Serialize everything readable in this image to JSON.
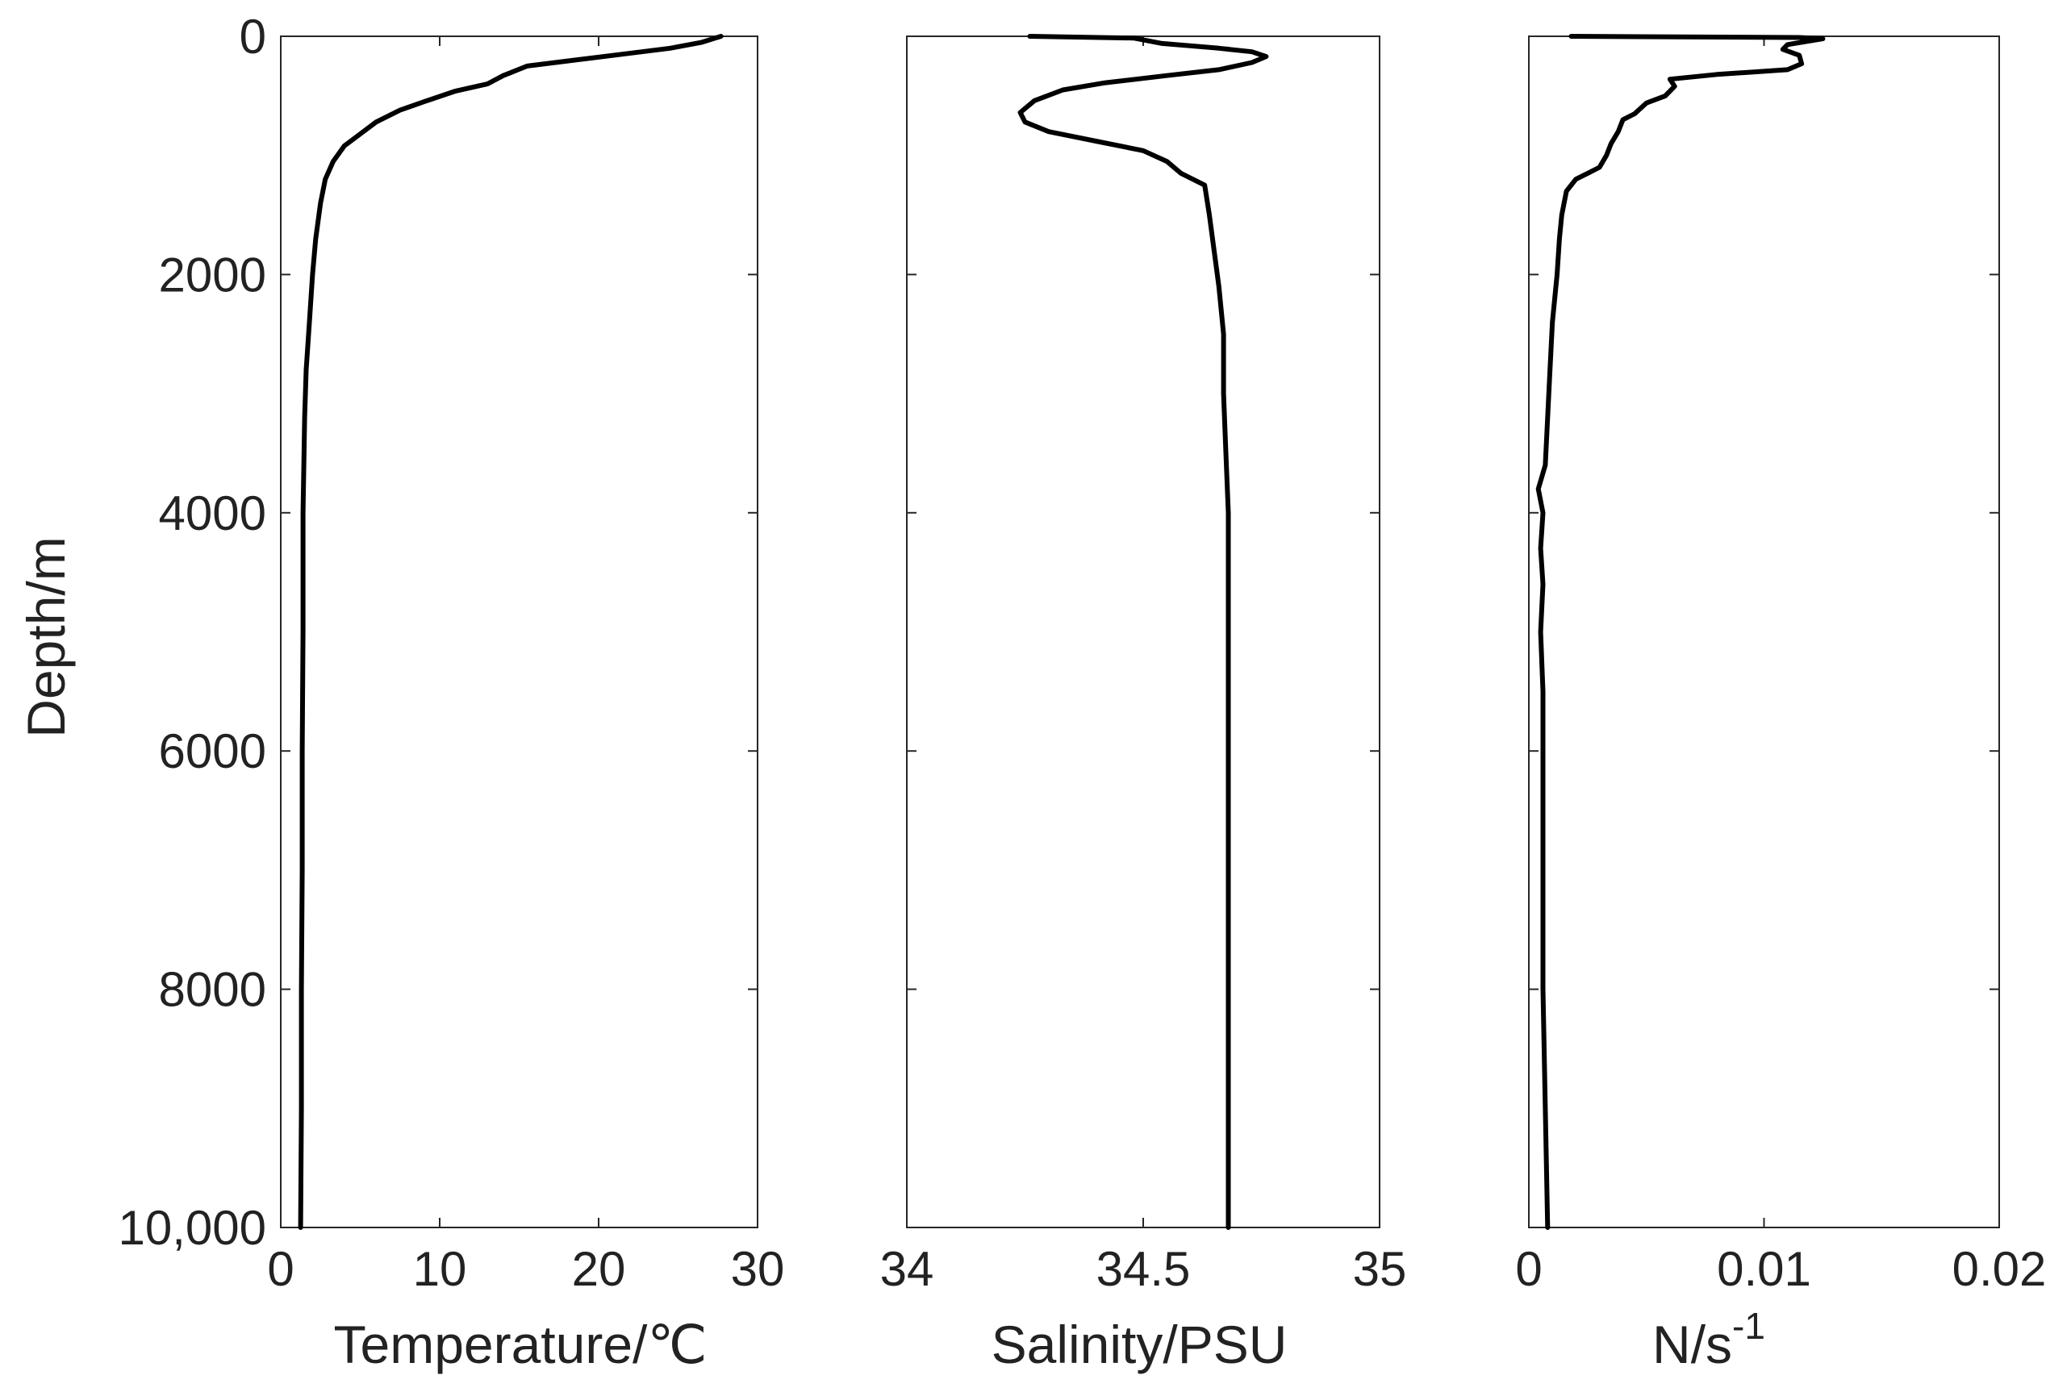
{
  "chart_data": [
    {
      "type": "line",
      "xlabel": "Temperature/℃",
      "ylabel": "Depth/m",
      "xlim": [
        0,
        30
      ],
      "ylim": [
        0,
        10000
      ],
      "y_reversed": true,
      "x_ticks": [
        "0",
        "10",
        "20",
        "30"
      ],
      "y_ticks": [
        "0",
        "2000",
        "4000",
        "6000",
        "8000",
        "10,000"
      ],
      "series": [
        {
          "color": "#000000",
          "points": [
            [
              27.7,
              0
            ],
            [
              26.5,
              50
            ],
            [
              24.5,
              100
            ],
            [
              21.5,
              150
            ],
            [
              18.5,
              200
            ],
            [
              15.5,
              250
            ],
            [
              14,
              330
            ],
            [
              13,
              400
            ],
            [
              11,
              460
            ],
            [
              9,
              550
            ],
            [
              7.5,
              620
            ],
            [
              6,
              720
            ],
            [
              5,
              820
            ],
            [
              4,
              920
            ],
            [
              3.3,
              1050
            ],
            [
              2.8,
              1200
            ],
            [
              2.5,
              1400
            ],
            [
              2.2,
              1700
            ],
            [
              2.0,
              2000
            ],
            [
              1.8,
              2400
            ],
            [
              1.6,
              2800
            ],
            [
              1.5,
              3200
            ],
            [
              1.45,
              3600
            ],
            [
              1.4,
              4000
            ],
            [
              1.4,
              5000
            ],
            [
              1.35,
              6000
            ],
            [
              1.35,
              7000
            ],
            [
              1.3,
              8000
            ],
            [
              1.3,
              9000
            ],
            [
              1.25,
              10000
            ]
          ]
        }
      ]
    },
    {
      "type": "line",
      "xlabel": "Salinity/PSU",
      "xlim": [
        34,
        35
      ],
      "ylim": [
        0,
        10000
      ],
      "y_reversed": true,
      "x_ticks": [
        "34",
        "34.5",
        "35"
      ],
      "series": [
        {
          "color": "#000000",
          "points": [
            [
              34.26,
              0
            ],
            [
              34.48,
              15
            ],
            [
              34.54,
              60
            ],
            [
              34.66,
              100
            ],
            [
              34.73,
              130
            ],
            [
              34.76,
              170
            ],
            [
              34.73,
              220
            ],
            [
              34.66,
              280
            ],
            [
              34.55,
              330
            ],
            [
              34.42,
              390
            ],
            [
              34.33,
              450
            ],
            [
              34.27,
              540
            ],
            [
              34.24,
              640
            ],
            [
              34.25,
              720
            ],
            [
              34.3,
              800
            ],
            [
              34.4,
              880
            ],
            [
              34.5,
              960
            ],
            [
              34.55,
              1050
            ],
            [
              34.58,
              1150
            ],
            [
              34.63,
              1250
            ],
            [
              34.64,
              1500
            ],
            [
              34.65,
              1800
            ],
            [
              34.66,
              2100
            ],
            [
              34.67,
              2500
            ],
            [
              34.67,
              3000
            ],
            [
              34.675,
              3500
            ],
            [
              34.68,
              4000
            ],
            [
              34.68,
              5000
            ],
            [
              34.68,
              6000
            ],
            [
              34.68,
              7000
            ],
            [
              34.68,
              8000
            ],
            [
              34.68,
              9000
            ],
            [
              34.68,
              10000
            ]
          ]
        }
      ]
    },
    {
      "type": "line",
      "xlabel": "N/s",
      "xlabel_superscript": "-1",
      "xlim": [
        0,
        0.02
      ],
      "ylim": [
        0,
        10000
      ],
      "y_reversed": true,
      "x_ticks": [
        "0",
        "0.01",
        "0.02"
      ],
      "series": [
        {
          "color": "#000000",
          "points": [
            [
              0.0018,
              0
            ],
            [
              0.0115,
              10
            ],
            [
              0.0125,
              20
            ],
            [
              0.011,
              70
            ],
            [
              0.0108,
              110
            ],
            [
              0.0115,
              160
            ],
            [
              0.0116,
              230
            ],
            [
              0.011,
              280
            ],
            [
              0.008,
              320
            ],
            [
              0.006,
              360
            ],
            [
              0.0062,
              420
            ],
            [
              0.0058,
              500
            ],
            [
              0.005,
              560
            ],
            [
              0.0045,
              650
            ],
            [
              0.004,
              700
            ],
            [
              0.0038,
              800
            ],
            [
              0.0035,
              900
            ],
            [
              0.0033,
              1000
            ],
            [
              0.003,
              1100
            ],
            [
              0.0025,
              1150
            ],
            [
              0.002,
              1200
            ],
            [
              0.0016,
              1300
            ],
            [
              0.0014,
              1500
            ],
            [
              0.0013,
              1700
            ],
            [
              0.0012,
              2000
            ],
            [
              0.001,
              2400
            ],
            [
              0.0009,
              2800
            ],
            [
              0.0008,
              3200
            ],
            [
              0.0007,
              3600
            ],
            [
              0.0004,
              3800
            ],
            [
              0.0006,
              4000
            ],
            [
              0.0005,
              4300
            ],
            [
              0.0006,
              4600
            ],
            [
              0.0005,
              5000
            ],
            [
              0.0006,
              5500
            ],
            [
              0.0006,
              6000
            ],
            [
              0.0006,
              7000
            ],
            [
              0.0006,
              8000
            ],
            [
              0.0007,
              9000
            ],
            [
              0.0008,
              10000
            ]
          ]
        }
      ]
    }
  ]
}
